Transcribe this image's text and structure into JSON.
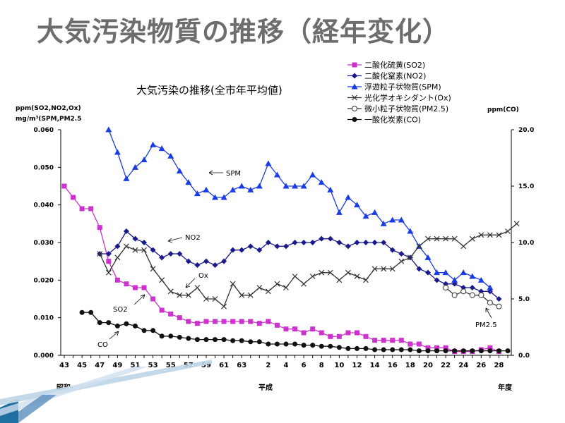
{
  "slide": {
    "title": "大気汚染物質の推移（経年変化）"
  },
  "chart_data": {
    "type": "line",
    "title": "大気汚染の推移(全市年平均値)",
    "ylabel_left_line1": "ppm(SO2,NO2,Ox)",
    "ylabel_left_line2": "mg/m³(SPM,PM2.5",
    "ylabel_right": "ppm(CO)",
    "era_labels": {
      "showa": "昭和",
      "heisei": "平成",
      "nendo": "年度"
    },
    "x_tick_labels": [
      "43",
      "45",
      "47",
      "49",
      "51",
      "53",
      "55",
      "57",
      "59",
      "61",
      "63",
      "2",
      "4",
      "6",
      "8",
      "10",
      "12",
      "14",
      "16",
      "18",
      "20",
      "22",
      "24",
      "26",
      "28"
    ],
    "yleft_ticks": [
      "0.000",
      "0.010",
      "0.020",
      "0.030",
      "0.040",
      "0.050",
      "0.060"
    ],
    "yright_ticks": [
      "0.0",
      "5.0",
      "10.0",
      "15.0",
      "20.0"
    ],
    "ylim_left": [
      0,
      0.06
    ],
    "ylim_right": [
      0,
      20
    ],
    "grid": false,
    "legend_position": "top-right",
    "series": [
      {
        "name": "二酸化硫黄(SO2)",
        "axis": "left",
        "color": "#cc33cc",
        "marker": "square",
        "start": 0,
        "values": [
          0.045,
          0.042,
          0.039,
          0.039,
          0.034,
          0.025,
          0.02,
          0.019,
          0.018,
          0.018,
          0.015,
          0.012,
          0.011,
          0.01,
          0.009,
          0.0085,
          0.009,
          0.009,
          0.009,
          0.009,
          0.009,
          0.009,
          0.0085,
          0.009,
          0.008,
          0.007,
          0.007,
          0.006,
          0.007,
          0.006,
          0.005,
          0.005,
          0.006,
          0.006,
          0.005,
          0.004,
          0.004,
          0.004,
          0.004,
          0.003,
          0.003,
          0.002,
          0.002,
          0.002,
          0.001,
          0.001,
          0.001,
          0.0015,
          0.002,
          0.001
        ]
      },
      {
        "name": "二酸化窒素(NO2)",
        "axis": "left",
        "color": "#1a1a8c",
        "marker": "diamond",
        "start": 4,
        "values": [
          0.027,
          0.027,
          0.029,
          0.033,
          0.031,
          0.03,
          0.028,
          0.026,
          0.027,
          0.027,
          0.025,
          0.024,
          0.025,
          0.024,
          0.025,
          0.028,
          0.028,
          0.029,
          0.028,
          0.03,
          0.029,
          0.029,
          0.03,
          0.03,
          0.03,
          0.031,
          0.031,
          0.03,
          0.029,
          0.03,
          0.03,
          0.03,
          0.03,
          0.028,
          0.027,
          0.026,
          0.023,
          0.022,
          0.02,
          0.019,
          0.019,
          0.018,
          0.018,
          0.017,
          0.017,
          0.015
        ]
      },
      {
        "name": "浮遊粒子状物質(SPM)",
        "axis": "left",
        "color": "#1a3ce6",
        "marker": "triangle",
        "start": 5,
        "values": [
          0.06,
          0.054,
          0.047,
          0.05,
          0.052,
          0.056,
          0.055,
          0.053,
          0.049,
          0.046,
          0.043,
          0.044,
          0.042,
          0.042,
          0.044,
          0.045,
          0.044,
          0.045,
          0.051,
          0.048,
          0.045,
          0.045,
          0.045,
          0.048,
          0.046,
          0.044,
          0.038,
          0.042,
          0.04,
          0.037,
          0.038,
          0.035,
          0.036,
          0.036,
          0.033,
          0.029,
          0.026,
          0.022,
          0.022,
          0.02,
          0.022,
          0.021,
          0.02,
          0.018
        ]
      },
      {
        "name": "光化学オキシダント(Ox)",
        "axis": "left",
        "color": "#333333",
        "marker": "x",
        "start": 4,
        "values": [
          0.027,
          0.022,
          0.026,
          0.029,
          0.028,
          0.028,
          0.023,
          0.02,
          0.017,
          0.016,
          0.016,
          0.018,
          0.015,
          0.015,
          0.013,
          0.019,
          0.016,
          0.016,
          0.018,
          0.017,
          0.019,
          0.018,
          0.021,
          0.019,
          0.021,
          0.022,
          0.022,
          0.02,
          0.022,
          0.021,
          0.02,
          0.023,
          0.023,
          0.023,
          0.025,
          0.026,
          0.029,
          0.031,
          0.031,
          0.031,
          0.031,
          0.029,
          0.031,
          0.032,
          0.032,
          0.032,
          0.033,
          0.035
        ]
      },
      {
        "name": "微小粒子状物質(PM2.5)",
        "axis": "left",
        "color": "#333333",
        "marker": "open-circle",
        "start": 43,
        "values": [
          0.018,
          0.016,
          0.017,
          0.016,
          0.016,
          0.014,
          0.013
        ]
      },
      {
        "name": "一酸化炭素(CO)",
        "axis": "right",
        "color": "#111111",
        "marker": "dot",
        "start": 2,
        "values": [
          3.8,
          3.8,
          2.9,
          2.9,
          2.6,
          2.8,
          2.6,
          2.2,
          2.2,
          1.7,
          1.7,
          1.6,
          1.5,
          1.4,
          1.4,
          1.4,
          1.4,
          1.3,
          1.3,
          1.2,
          1.2,
          1.0,
          1.0,
          1.0,
          1.0,
          0.9,
          0.9,
          0.8,
          0.8,
          0.7,
          0.6,
          0.6,
          0.6,
          0.5,
          0.5,
          0.5,
          0.5,
          0.5,
          0.4,
          0.4,
          0.4,
          0.4,
          0.4,
          0.4,
          0.4,
          0.4,
          0.4,
          0.4,
          0.4
        ]
      }
    ],
    "annotations": [
      "SPM",
      "NO2",
      "Ox",
      "SO2",
      "CO",
      "PM2.5"
    ]
  }
}
